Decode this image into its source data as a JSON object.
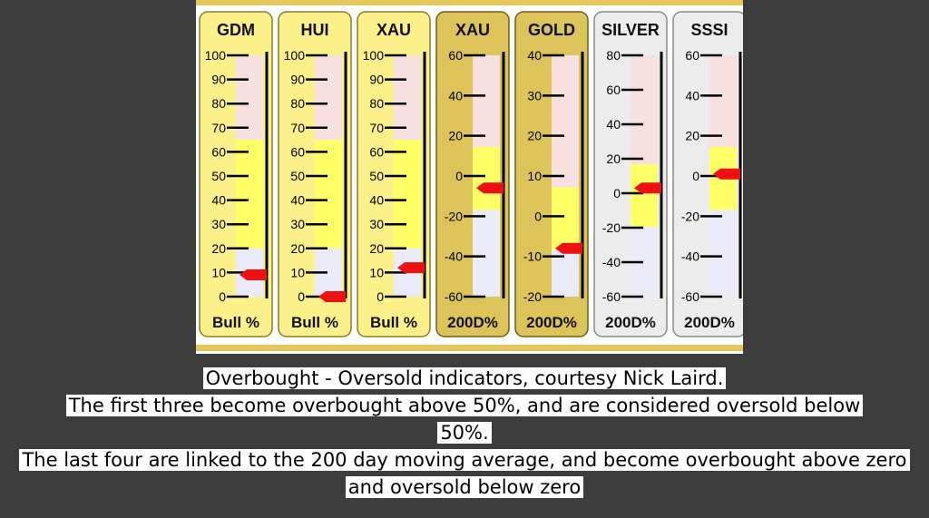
{
  "chart_data": {
    "type": "gauge",
    "gauges": [
      {
        "name": "GDM",
        "footer": "Bull %",
        "min": 0,
        "max": 100,
        "ticks": [
          0,
          10,
          20,
          30,
          40,
          50,
          60,
          70,
          80,
          90,
          100
        ],
        "value": 9,
        "overbought_above": 50,
        "style": "yellow"
      },
      {
        "name": "HUI",
        "footer": "Bull %",
        "min": 0,
        "max": 100,
        "ticks": [
          0,
          10,
          20,
          30,
          40,
          50,
          60,
          70,
          80,
          90,
          100
        ],
        "value": 0,
        "overbought_above": 50,
        "style": "yellow"
      },
      {
        "name": "XAU",
        "footer": "Bull %",
        "min": 0,
        "max": 100,
        "ticks": [
          0,
          10,
          20,
          30,
          40,
          50,
          60,
          70,
          80,
          90,
          100
        ],
        "value": 12,
        "overbought_above": 50,
        "style": "yellow"
      },
      {
        "name": "XAU",
        "footer": "200D%",
        "min": -60,
        "max": 60,
        "ticks": [
          -60,
          -40,
          -20,
          0,
          20,
          40,
          60
        ],
        "value": -6,
        "overbought_above": 0,
        "style": "gold"
      },
      {
        "name": "GOLD",
        "footer": "200D%",
        "min": -20,
        "max": 40,
        "ticks": [
          -20,
          -10,
          0,
          10,
          20,
          30,
          40
        ],
        "value": -8,
        "overbought_above": 0,
        "style": "gold"
      },
      {
        "name": "SILVER",
        "footer": "200D%",
        "min": -60,
        "max": 80,
        "ticks": [
          -60,
          -40,
          -20,
          0,
          20,
          40,
          60,
          80
        ],
        "value": 3,
        "overbought_above": 0,
        "style": "silver"
      },
      {
        "name": "SSSI",
        "footer": "200D%",
        "min": -60,
        "max": 60,
        "ticks": [
          -60,
          -40,
          -20,
          0,
          20,
          40,
          60
        ],
        "value": 1,
        "overbought_above": 0,
        "style": "silver"
      }
    ]
  },
  "caption": {
    "lines": [
      "Overbought - Oversold indicators, courtesy Nick Laird.",
      "The first three become overbought above 50%, and are considered oversold below 50%.",
      "The last four are linked to the 200 day moving average, and become overbought above zero and oversold below zero"
    ]
  },
  "colors": {
    "page_background": "#3d3d3d",
    "panel_background": "#ffffff",
    "panel_band": "#e5c65a",
    "yellow_card": "#fbf08a",
    "gold_card": "#dcc35a",
    "silver_card": "#ececec",
    "overbought_zone": "#f9e0e0",
    "oversold_zone": "#eaeaf8",
    "level_fill": "#ffff66",
    "marker": "#ee1111"
  }
}
